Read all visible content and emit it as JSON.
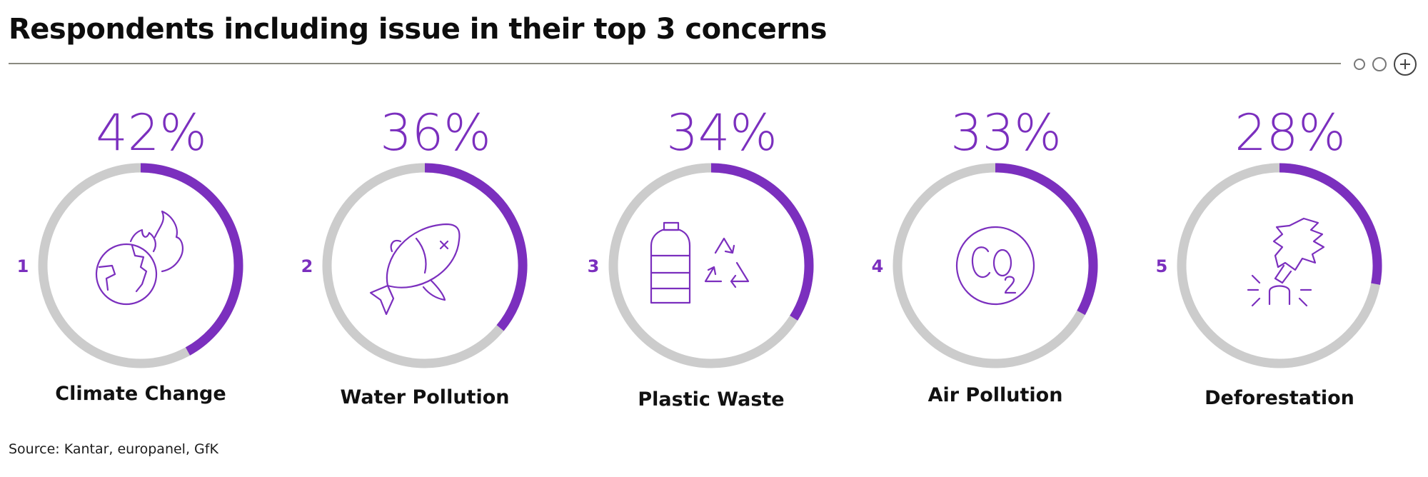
{
  "title": "Respondents including issue in their top 3 concerns",
  "source": "Source: Kantar, europanel, GfK",
  "controls": [
    "small-circle-icon",
    "circle-icon",
    "plus-circle-icon"
  ],
  "colors": {
    "accent": "#7b2fbe",
    "track": "#cccccc",
    "text": "#111111",
    "rule": "#8a8a80"
  },
  "chart_data": {
    "type": "donut",
    "unit": "%",
    "items": [
      {
        "rank": "1",
        "label": "Climate Change",
        "value": 42,
        "value_label": "42%",
        "icon": "globe-fire-icon"
      },
      {
        "rank": "2",
        "label": "Water Pollution",
        "value": 36,
        "value_label": "36%",
        "icon": "dead-fish-icon"
      },
      {
        "rank": "3",
        "label": "Plastic Waste",
        "value": 34,
        "value_label": "34%",
        "icon": "plastic-bottle-recycle-icon"
      },
      {
        "rank": "4",
        "label": "Air Pollution",
        "value": 33,
        "value_label": "33%",
        "icon": "co2-icon"
      },
      {
        "rank": "5",
        "label": "Deforestation",
        "value": 28,
        "value_label": "28%",
        "icon": "cut-tree-icon"
      }
    ]
  }
}
